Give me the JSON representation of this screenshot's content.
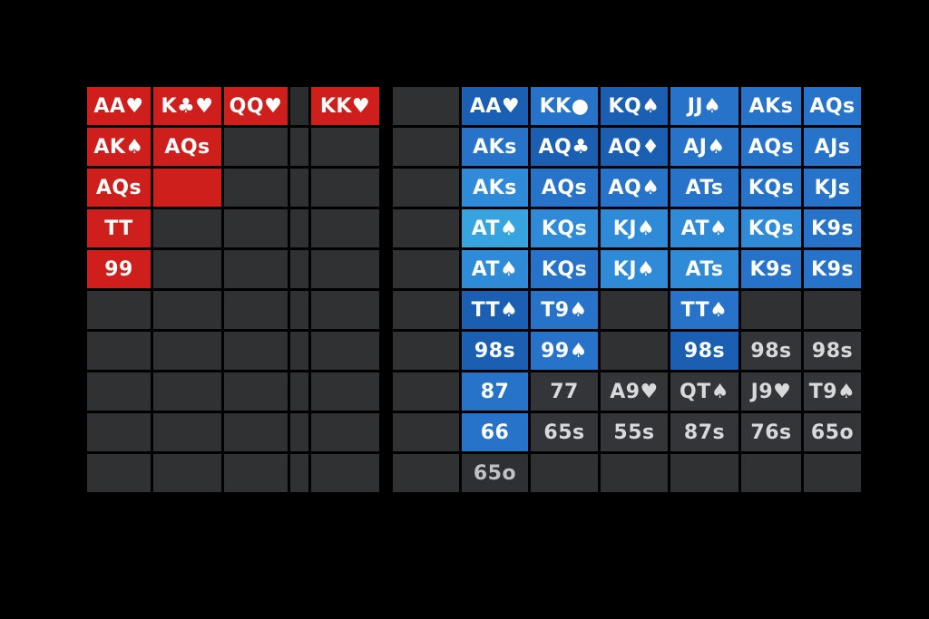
{
  "left_grid": {
    "rows": [
      [
        {
          "t": "AA♥",
          "c": "red"
        },
        {
          "t": "K♣♥",
          "c": "red"
        },
        {
          "t": "QQ♥",
          "c": "red"
        },
        {
          "t": "",
          "c": "redsep"
        },
        {
          "t": "KK♥",
          "c": "red"
        }
      ],
      [
        {
          "t": "AK♠",
          "c": "red"
        },
        {
          "t": "AQs",
          "c": "red"
        },
        {
          "t": "",
          "c": "empty"
        },
        {
          "t": "",
          "c": "empty"
        },
        {
          "t": "",
          "c": "empty"
        }
      ],
      [
        {
          "t": "AQs",
          "c": "red"
        },
        {
          "t": "",
          "c": "red"
        },
        {
          "t": "",
          "c": "empty"
        },
        {
          "t": "",
          "c": "empty"
        },
        {
          "t": "",
          "c": "empty"
        }
      ],
      [
        {
          "t": "TT",
          "c": "red"
        },
        {
          "t": "",
          "c": "empty"
        },
        {
          "t": "",
          "c": "empty"
        },
        {
          "t": "",
          "c": "empty"
        },
        {
          "t": "",
          "c": "empty"
        }
      ],
      [
        {
          "t": "99",
          "c": "red"
        },
        {
          "t": "",
          "c": "empty"
        },
        {
          "t": "",
          "c": "empty"
        },
        {
          "t": "",
          "c": "empty"
        },
        {
          "t": "",
          "c": "empty"
        }
      ],
      [
        {
          "t": "",
          "c": "empty"
        },
        {
          "t": "",
          "c": "empty"
        },
        {
          "t": "",
          "c": "empty"
        },
        {
          "t": "",
          "c": "empty"
        },
        {
          "t": "",
          "c": "empty"
        }
      ],
      [
        {
          "t": "",
          "c": "empty"
        },
        {
          "t": "",
          "c": "empty"
        },
        {
          "t": "",
          "c": "empty"
        },
        {
          "t": "",
          "c": "empty"
        },
        {
          "t": "",
          "c": "empty"
        }
      ],
      [
        {
          "t": "",
          "c": "empty"
        },
        {
          "t": "",
          "c": "empty"
        },
        {
          "t": "",
          "c": "empty"
        },
        {
          "t": "",
          "c": "empty"
        },
        {
          "t": "",
          "c": "empty"
        }
      ],
      [
        {
          "t": "",
          "c": "empty"
        },
        {
          "t": "",
          "c": "empty"
        },
        {
          "t": "",
          "c": "empty"
        },
        {
          "t": "",
          "c": "empty"
        },
        {
          "t": "",
          "c": "empty"
        }
      ],
      [
        {
          "t": "",
          "c": "empty"
        },
        {
          "t": "",
          "c": "empty"
        },
        {
          "t": "",
          "c": "empty"
        },
        {
          "t": "",
          "c": "empty"
        },
        {
          "t": "",
          "c": "empty"
        }
      ]
    ]
  },
  "right_grid": {
    "rows": [
      [
        {
          "t": "",
          "c": "empty"
        },
        {
          "t": "AA♥",
          "c": "blue1"
        },
        {
          "t": "KK●",
          "c": "blue2"
        },
        {
          "t": "KQ♠",
          "c": "blue1"
        },
        {
          "t": "JJ♠",
          "c": "blue2"
        },
        {
          "t": "AKs",
          "c": "blue2"
        },
        {
          "t": "AQs",
          "c": "blue2"
        }
      ],
      [
        {
          "t": "",
          "c": "empty"
        },
        {
          "t": "AKs",
          "c": "blue2"
        },
        {
          "t": "AQ♣",
          "c": "blue1"
        },
        {
          "t": "AQ♦",
          "c": "blue1"
        },
        {
          "t": "AJ♠",
          "c": "blue2"
        },
        {
          "t": "AQs",
          "c": "blue2"
        },
        {
          "t": "AJs",
          "c": "blue2"
        }
      ],
      [
        {
          "t": "",
          "c": "empty"
        },
        {
          "t": "AKs",
          "c": "blue3"
        },
        {
          "t": "AQs",
          "c": "blue2"
        },
        {
          "t": "AQ♠",
          "c": "blue2"
        },
        {
          "t": "ATs",
          "c": "blue2"
        },
        {
          "t": "KQs",
          "c": "blue2"
        },
        {
          "t": "KJs",
          "c": "blue2"
        }
      ],
      [
        {
          "t": "",
          "c": "empty"
        },
        {
          "t": "AT♠",
          "c": "blue4"
        },
        {
          "t": "KQs",
          "c": "blue3"
        },
        {
          "t": "KJ♠",
          "c": "blue3"
        },
        {
          "t": "AT♠",
          "c": "blue3"
        },
        {
          "t": "KQs",
          "c": "blue3"
        },
        {
          "t": "K9s",
          "c": "blue2"
        }
      ],
      [
        {
          "t": "",
          "c": "empty"
        },
        {
          "t": "AT♠",
          "c": "blue3"
        },
        {
          "t": "KQs",
          "c": "blue2"
        },
        {
          "t": "KJ♠",
          "c": "blue3"
        },
        {
          "t": "ATs",
          "c": "blue3"
        },
        {
          "t": "K9s",
          "c": "blue2"
        },
        {
          "t": "K9s",
          "c": "blue2"
        }
      ],
      [
        {
          "t": "",
          "c": "empty"
        },
        {
          "t": "TT♠",
          "c": "blue1"
        },
        {
          "t": "T9♠",
          "c": "blue2"
        },
        {
          "t": "",
          "c": "empty"
        },
        {
          "t": "TT♠",
          "c": "blue2"
        },
        {
          "t": "",
          "c": "empty"
        },
        {
          "t": "",
          "c": "empty"
        }
      ],
      [
        {
          "t": "",
          "c": "empty"
        },
        {
          "t": "98s",
          "c": "blue1"
        },
        {
          "t": "99♠",
          "c": "blue2"
        },
        {
          "t": "",
          "c": "empty"
        },
        {
          "t": "98s",
          "c": "blue1"
        },
        {
          "t": "98s",
          "c": "gray"
        },
        {
          "t": "98s",
          "c": "gray"
        }
      ],
      [
        {
          "t": "",
          "c": "empty"
        },
        {
          "t": "87",
          "c": "blue2"
        },
        {
          "t": "77",
          "c": "gray"
        },
        {
          "t": "A9♥",
          "c": "gray"
        },
        {
          "t": "QT♠",
          "c": "gray"
        },
        {
          "t": "J9♥",
          "c": "gray"
        },
        {
          "t": "T9♠",
          "c": "gray"
        }
      ],
      [
        {
          "t": "",
          "c": "empty"
        },
        {
          "t": "66",
          "c": "blue2"
        },
        {
          "t": "65s",
          "c": "gray"
        },
        {
          "t": "55s",
          "c": "gray"
        },
        {
          "t": "87s",
          "c": "gray"
        },
        {
          "t": "76s",
          "c": "gray"
        },
        {
          "t": "65o",
          "c": "gray"
        }
      ],
      [
        {
          "t": "",
          "c": "empty"
        },
        {
          "t": "65o",
          "c": "dim"
        },
        {
          "t": "",
          "c": "empty"
        },
        {
          "t": "",
          "c": "empty"
        },
        {
          "t": "",
          "c": "empty"
        },
        {
          "t": "",
          "c": "empty"
        },
        {
          "t": "",
          "c": "empty"
        }
      ]
    ]
  }
}
